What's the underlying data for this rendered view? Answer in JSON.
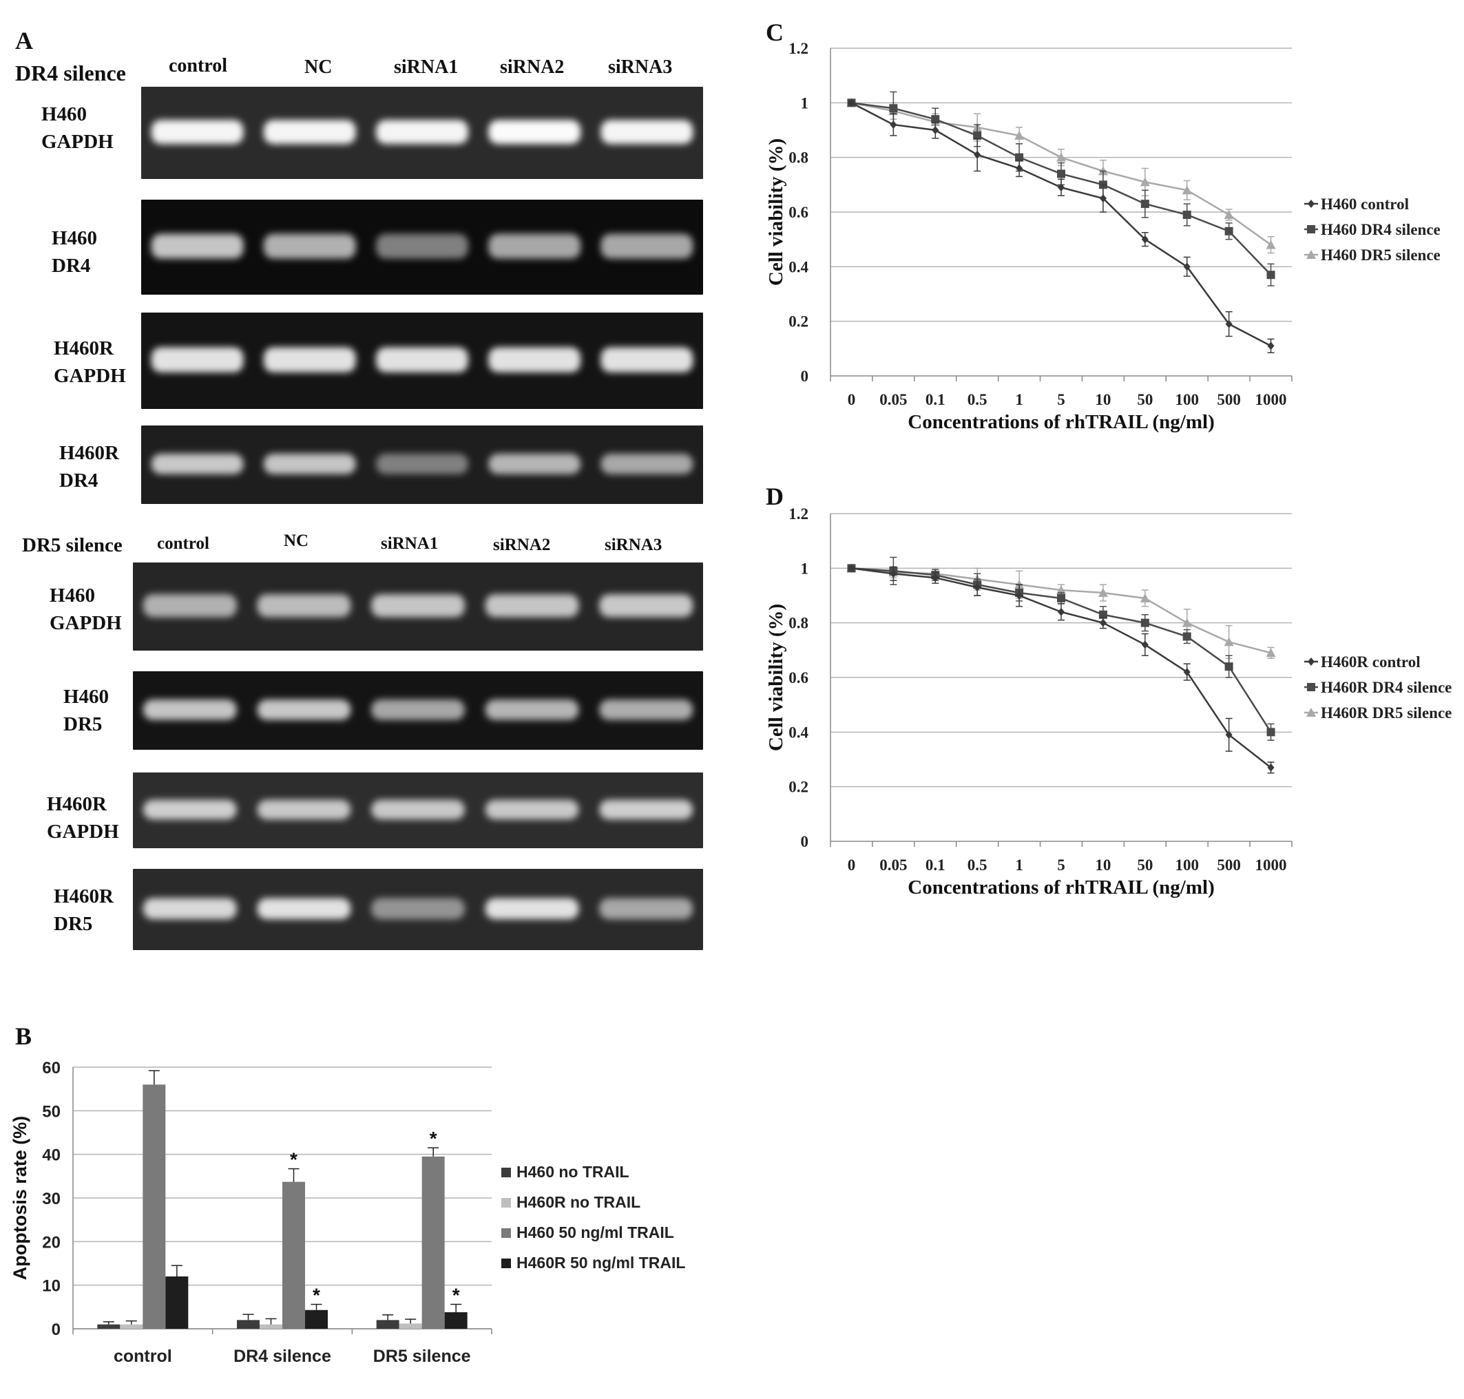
{
  "panelA": {
    "letter": "A",
    "dr4": {
      "section_label": "DR4 silence",
      "lanes": [
        "control",
        "NC",
        "siRNA1",
        "siRNA2",
        "siRNA3"
      ],
      "rows": [
        {
          "label1": "H460",
          "label2": "GAPDH",
          "bg": "#2b2b2b",
          "intensity": [
            0.95,
            0.95,
            0.95,
            0.98,
            0.95
          ]
        },
        {
          "label1": "H460",
          "label2": "DR4",
          "bg": "#0c0c0c",
          "intensity": [
            0.7,
            0.6,
            0.35,
            0.55,
            0.55
          ]
        },
        {
          "label1": "H460R",
          "label2": "GAPDH",
          "bg": "#141414",
          "intensity": [
            0.85,
            0.85,
            0.85,
            0.85,
            0.85
          ]
        },
        {
          "label1": "H460R",
          "label2": "DR4",
          "bg": "#1e1e1e",
          "intensity": [
            0.72,
            0.7,
            0.35,
            0.62,
            0.55
          ]
        }
      ]
    },
    "dr5": {
      "section_label": "DR5 silence",
      "lanes": [
        "control",
        "NC",
        "siRNA1",
        "siRNA2",
        "siRNA3"
      ],
      "rows": [
        {
          "label1": "H460",
          "label2": "GAPDH",
          "bg": "#262626",
          "intensity": [
            0.6,
            0.65,
            0.7,
            0.7,
            0.72
          ]
        },
        {
          "label1": "H460",
          "label2": "DR5",
          "bg": "#141414",
          "intensity": [
            0.7,
            0.72,
            0.55,
            0.62,
            0.58
          ]
        },
        {
          "label1": "H460R",
          "label2": "GAPDH",
          "bg": "#2d2d2d",
          "intensity": [
            0.75,
            0.72,
            0.72,
            0.72,
            0.75
          ]
        },
        {
          "label1": "H460R",
          "label2": "DR5",
          "bg": "#2a2a2a",
          "intensity": [
            0.8,
            0.85,
            0.45,
            0.85,
            0.55
          ]
        }
      ]
    }
  },
  "panelB": {
    "letter": "B",
    "chart_data": {
      "type": "bar",
      "ylabel": "Apoptosis rate (%)",
      "xlabel": "",
      "ylim": [
        0,
        60
      ],
      "yticks": [
        0,
        10,
        20,
        30,
        40,
        50,
        60
      ],
      "categories": [
        "control",
        "DR4 silence",
        "DR5 silence"
      ],
      "grid": true,
      "legend_position": "right",
      "series": [
        {
          "name": "H460 no TRAIL",
          "color": "#3c3c3c",
          "values": [
            1.0,
            2.0,
            2.0
          ],
          "errors": [
            0.6,
            1.3,
            1.2
          ],
          "star": [
            false,
            false,
            false
          ]
        },
        {
          "name": "H460R no TRAIL",
          "color": "#bfbfbf",
          "values": [
            1.0,
            1.0,
            1.2
          ],
          "errors": [
            0.8,
            1.3,
            1.0
          ],
          "star": [
            false,
            false,
            false
          ]
        },
        {
          "name": "H460 50  ng/ml TRAIL",
          "color": "#7a7a7a",
          "values": [
            56.0,
            33.7,
            39.5
          ],
          "errors": [
            3.2,
            3.0,
            2.0
          ],
          "star": [
            false,
            true,
            true
          ]
        },
        {
          "name": "H460R 50 ng/ml TRAIL",
          "color": "#1e1e1e",
          "values": [
            12.0,
            4.3,
            3.8
          ],
          "errors": [
            2.5,
            1.3,
            1.8
          ],
          "star": [
            false,
            true,
            true
          ]
        }
      ],
      "star_label": "*"
    }
  },
  "panelC": {
    "letter": "C",
    "chart_data": {
      "type": "line",
      "ylabel": "Cell viability  (%)",
      "xlabel": "Concentrations of rhTRAIL  (ng/ml)",
      "ylim": [
        0,
        1.2
      ],
      "yticks": [
        "0",
        "0.2",
        "0.4",
        "0.6",
        "0.8",
        "1",
        "1.2"
      ],
      "categories": [
        "0",
        "0.05",
        "0.1",
        "0.5",
        "1",
        "5",
        "10",
        "50",
        "100",
        "500",
        "1000"
      ],
      "grid": true,
      "legend_position": "right",
      "series": [
        {
          "name": "H460 control",
          "color": "#3a3a3a",
          "marker": "diamond",
          "values": [
            1.0,
            0.92,
            0.9,
            0.81,
            0.76,
            0.69,
            0.65,
            0.5,
            0.4,
            0.19,
            0.11
          ],
          "errors": [
            0.005,
            0.04,
            0.03,
            0.06,
            0.03,
            0.03,
            0.05,
            0.025,
            0.035,
            0.045,
            0.025
          ]
        },
        {
          "name": "H460 DR4 silence",
          "color": "#4a4a4a",
          "marker": "square",
          "values": [
            1.0,
            0.98,
            0.94,
            0.88,
            0.8,
            0.74,
            0.7,
            0.63,
            0.59,
            0.53,
            0.37
          ],
          "errors": [
            0.005,
            0.06,
            0.04,
            0.04,
            0.05,
            0.04,
            0.05,
            0.05,
            0.04,
            0.03,
            0.04
          ]
        },
        {
          "name": "H460 DR5 silence",
          "color": "#a8a8a8",
          "marker": "triangle",
          "values": [
            1.0,
            0.97,
            0.93,
            0.91,
            0.88,
            0.8,
            0.75,
            0.71,
            0.68,
            0.59,
            0.48
          ],
          "errors": [
            0.005,
            0.03,
            0.03,
            0.05,
            0.03,
            0.03,
            0.04,
            0.05,
            0.035,
            0.02,
            0.03
          ]
        }
      ]
    }
  },
  "panelD": {
    "letter": "D",
    "chart_data": {
      "type": "line",
      "ylabel": "Cell viability  (%)",
      "xlabel": "Concentrations of rhTRAIL  (ng/ml)",
      "ylim": [
        0,
        1.2
      ],
      "yticks": [
        "0",
        "0.2",
        "0.4",
        "0.6",
        "0.8",
        "1",
        "1.2"
      ],
      "categories": [
        "0",
        "0.05",
        "0.1",
        "0.5",
        "1",
        "5",
        "10",
        "50",
        "100",
        "500",
        "1000"
      ],
      "grid": true,
      "legend_position": "right",
      "series": [
        {
          "name": "H460R control",
          "color": "#3a3a3a",
          "marker": "diamond",
          "values": [
            1.0,
            0.98,
            0.965,
            0.93,
            0.9,
            0.84,
            0.8,
            0.72,
            0.62,
            0.39,
            0.27
          ],
          "errors": [
            0.005,
            0.025,
            0.02,
            0.03,
            0.04,
            0.03,
            0.02,
            0.04,
            0.03,
            0.06,
            0.02
          ]
        },
        {
          "name": "H460R DR4 silence",
          "color": "#4a4a4a",
          "marker": "square",
          "values": [
            1.0,
            0.99,
            0.975,
            0.94,
            0.91,
            0.89,
            0.83,
            0.8,
            0.75,
            0.64,
            0.4
          ],
          "errors": [
            0.005,
            0.05,
            0.02,
            0.04,
            0.03,
            0.02,
            0.03,
            0.03,
            0.025,
            0.04,
            0.03
          ]
        },
        {
          "name": "H460R DR5 silence",
          "color": "#a8a8a8",
          "marker": "triangle",
          "values": [
            1.0,
            0.985,
            0.98,
            0.96,
            0.94,
            0.92,
            0.91,
            0.89,
            0.8,
            0.73,
            0.69
          ],
          "errors": [
            0.005,
            0.02,
            0.02,
            0.04,
            0.05,
            0.02,
            0.03,
            0.03,
            0.05,
            0.06,
            0.02
          ]
        }
      ]
    }
  }
}
